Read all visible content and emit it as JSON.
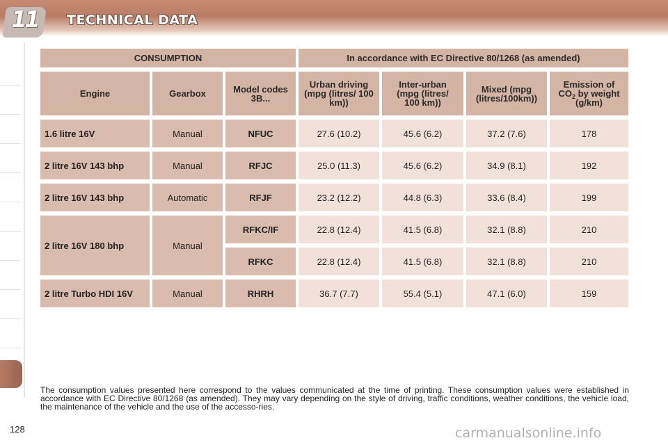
{
  "header": {
    "chapter_number": "11",
    "title": "TECHNICAL DATA"
  },
  "table": {
    "group_headers": {
      "left": "CONSUMPTION",
      "right": "In accordance with EC Directive 80/1268 (as amended)"
    },
    "columns": {
      "engine": "Engine",
      "gearbox": "Gearbox",
      "model_codes": "Model codes 3B...",
      "urban": "Urban driving (mpg (litres/ 100 km))",
      "inter_urban": "Inter-urban (mpg (litres/ 100 km))",
      "mixed": "Mixed (mpg (litres/100km))",
      "emission_prefix": "Emission of CO",
      "emission_sub": "2",
      "emission_suffix": " by weight (g/km)"
    },
    "rows": [
      {
        "engine": "1.6 litre 16V",
        "gearbox": "Manual",
        "code": "NFUC",
        "urban": "27.6 (10.2)",
        "inter_urban": "45.6 (6.2)",
        "mixed": "37.2 (7.6)",
        "emission": "178"
      },
      {
        "engine": "2 litre 16V 143 bhp",
        "gearbox": "Manual",
        "code": "RFJC",
        "urban": "25.0 (11.3)",
        "inter_urban": "45.6 (6.2)",
        "mixed": "34.9 (8.1)",
        "emission": "192"
      },
      {
        "engine": "2 litre 16V 143 bhp",
        "gearbox": "Automatic",
        "code": "RFJF",
        "urban": "23.2 (12.2)",
        "inter_urban": "44.8 (6.3)",
        "mixed": "33.6 (8.4)",
        "emission": "199"
      },
      {
        "engine": "2 litre 16V 180 bhp",
        "gearbox": "Manual",
        "code": "RFKC/IF",
        "urban": "22.8 (12.4)",
        "inter_urban": "41.5 (6.8)",
        "mixed": "32.1 (8.8)",
        "emission": "210"
      },
      {
        "engine": "",
        "gearbox": "",
        "code": "RFKC",
        "urban": "22.8 (12.4)",
        "inter_urban": "41.5 (6.8)",
        "mixed": "32.1 (8.8)",
        "emission": "210"
      },
      {
        "engine": "2 litre Turbo HDI 16V",
        "gearbox": "Manual",
        "code": "RHRH",
        "urban": "36.7 (7.7)",
        "inter_urban": "55.4 (5.1)",
        "mixed": "47.1 (6.0)",
        "emission": "159"
      }
    ]
  },
  "footnote": "The consumption values presented here correspond to the values communicated at the time of printing. These consumption values were established in accordance with EC Directive 80/1268 (as amended). They may vary depending on the style of driving, traffic conditions, weather conditions, the vehicle load, the maintenance of the vehicle and the use of the accesso-ries.",
  "page_number": "128",
  "watermark": "carmanualsonline.info"
}
